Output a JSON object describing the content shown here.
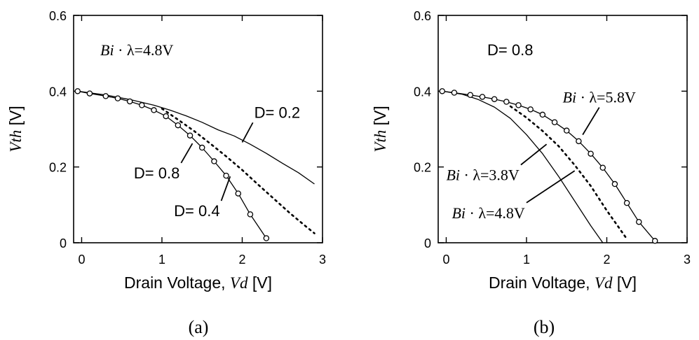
{
  "chart_data": [
    {
      "type": "line",
      "caption": "(a)",
      "xlim": [
        -0.1,
        3.0
      ],
      "ylim": [
        0,
        0.6
      ],
      "x_ticks": [
        "0",
        "1",
        "2",
        "3"
      ],
      "y_ticks": [
        "0",
        "0.2",
        "0.4",
        "0.6"
      ],
      "xlabel": {
        "text": "Drain Voltage, ",
        "var": "Vd",
        "unit": " [V]"
      },
      "ylabel": {
        "var": "Vth",
        "unit": " [V]"
      },
      "annotation": {
        "var": "Bi",
        "rest": " · λ=4.8V"
      },
      "series": [
        {
          "name": "D= 0.2",
          "style": "solid",
          "x": [
            -0.05,
            0.3,
            0.6,
            0.9,
            1.1,
            1.3,
            1.5,
            1.7,
            1.9,
            2.1,
            2.3,
            2.5,
            2.7,
            2.9
          ],
          "y": [
            0.4,
            0.39,
            0.378,
            0.363,
            0.35,
            0.335,
            0.318,
            0.298,
            0.282,
            0.26,
            0.236,
            0.21,
            0.185,
            0.155
          ]
        },
        {
          "name": "D= 0.4",
          "style": "dotted",
          "x": [
            1.0,
            1.2,
            1.4,
            1.6,
            1.8,
            2.0,
            2.2,
            2.4,
            2.6,
            2.8,
            2.9
          ],
          "y": [
            0.354,
            0.325,
            0.295,
            0.262,
            0.228,
            0.192,
            0.153,
            0.115,
            0.077,
            0.042,
            0.025
          ]
        },
        {
          "name": "D= 0.8",
          "style": "solid-circles",
          "x": [
            -0.05,
            0.1,
            0.3,
            0.45,
            0.6,
            0.75,
            0.9,
            1.05,
            1.2,
            1.35,
            1.5,
            1.65,
            1.8,
            1.95,
            2.1,
            2.3
          ],
          "y": [
            0.4,
            0.394,
            0.387,
            0.381,
            0.373,
            0.363,
            0.35,
            0.334,
            0.31,
            0.283,
            0.251,
            0.215,
            0.177,
            0.13,
            0.075,
            0.012
          ]
        }
      ],
      "labels": [
        {
          "text": "D= 0.2",
          "x": 2.15,
          "y": 0.33,
          "px": 2.0,
          "py": 0.265
        },
        {
          "text": "D= 0.8",
          "x": 0.65,
          "y": 0.17,
          "px": 1.38,
          "py": 0.262
        },
        {
          "text": "D= 0.4",
          "x": 1.15,
          "y": 0.07,
          "px": 1.85,
          "py": 0.175
        }
      ]
    },
    {
      "type": "line",
      "caption": "(b)",
      "xlim": [
        -0.1,
        3.0
      ],
      "ylim": [
        0,
        0.6
      ],
      "x_ticks": [
        "0",
        "1",
        "2",
        "3"
      ],
      "y_ticks": [
        "0",
        "0.2",
        "0.4",
        "0.6"
      ],
      "xlabel": {
        "text": "Drain Voltage, ",
        "var": "Vd",
        "unit": " [V]"
      },
      "ylabel": {
        "var": "Vth",
        "unit": " [V]"
      },
      "annotation": {
        "text": "D= 0.8"
      },
      "series": [
        {
          "name": "Bi · λ=3.8V",
          "style": "solid",
          "x": [
            -0.05,
            0.2,
            0.4,
            0.6,
            0.8,
            1.0,
            1.2,
            1.4,
            1.6,
            1.8,
            1.95
          ],
          "y": [
            0.4,
            0.392,
            0.378,
            0.358,
            0.328,
            0.285,
            0.235,
            0.175,
            0.11,
            0.045,
            0.0
          ]
        },
        {
          "name": "Bi · λ=4.8V",
          "style": "dotted",
          "x": [
            0.8,
            1.0,
            1.2,
            1.4,
            1.6,
            1.8,
            2.0,
            2.15,
            2.25
          ],
          "y": [
            0.36,
            0.33,
            0.295,
            0.255,
            0.205,
            0.15,
            0.085,
            0.04,
            0.01
          ]
        },
        {
          "name": "Bi · λ=5.8V",
          "style": "solid-circles",
          "x": [
            -0.05,
            0.1,
            0.3,
            0.45,
            0.6,
            0.75,
            0.9,
            1.05,
            1.2,
            1.35,
            1.5,
            1.65,
            1.8,
            1.95,
            2.1,
            2.25,
            2.4,
            2.6
          ],
          "y": [
            0.4,
            0.396,
            0.39,
            0.385,
            0.379,
            0.372,
            0.363,
            0.352,
            0.338,
            0.318,
            0.296,
            0.268,
            0.235,
            0.198,
            0.155,
            0.105,
            0.055,
            0.005
          ]
        }
      ],
      "labels": [
        {
          "var": "Bi",
          "rest": " · λ=5.8V",
          "x": 1.45,
          "y": 0.37,
          "px": 1.7,
          "py": 0.285
        },
        {
          "var": "Bi",
          "rest": " · λ=3.8V",
          "x": 0.0,
          "y": 0.165,
          "px": 1.25,
          "py": 0.26
        },
        {
          "var": "Bi",
          "rest": " · λ=4.8V",
          "x": 0.07,
          "y": 0.065,
          "px": 1.6,
          "py": 0.19
        }
      ]
    }
  ]
}
